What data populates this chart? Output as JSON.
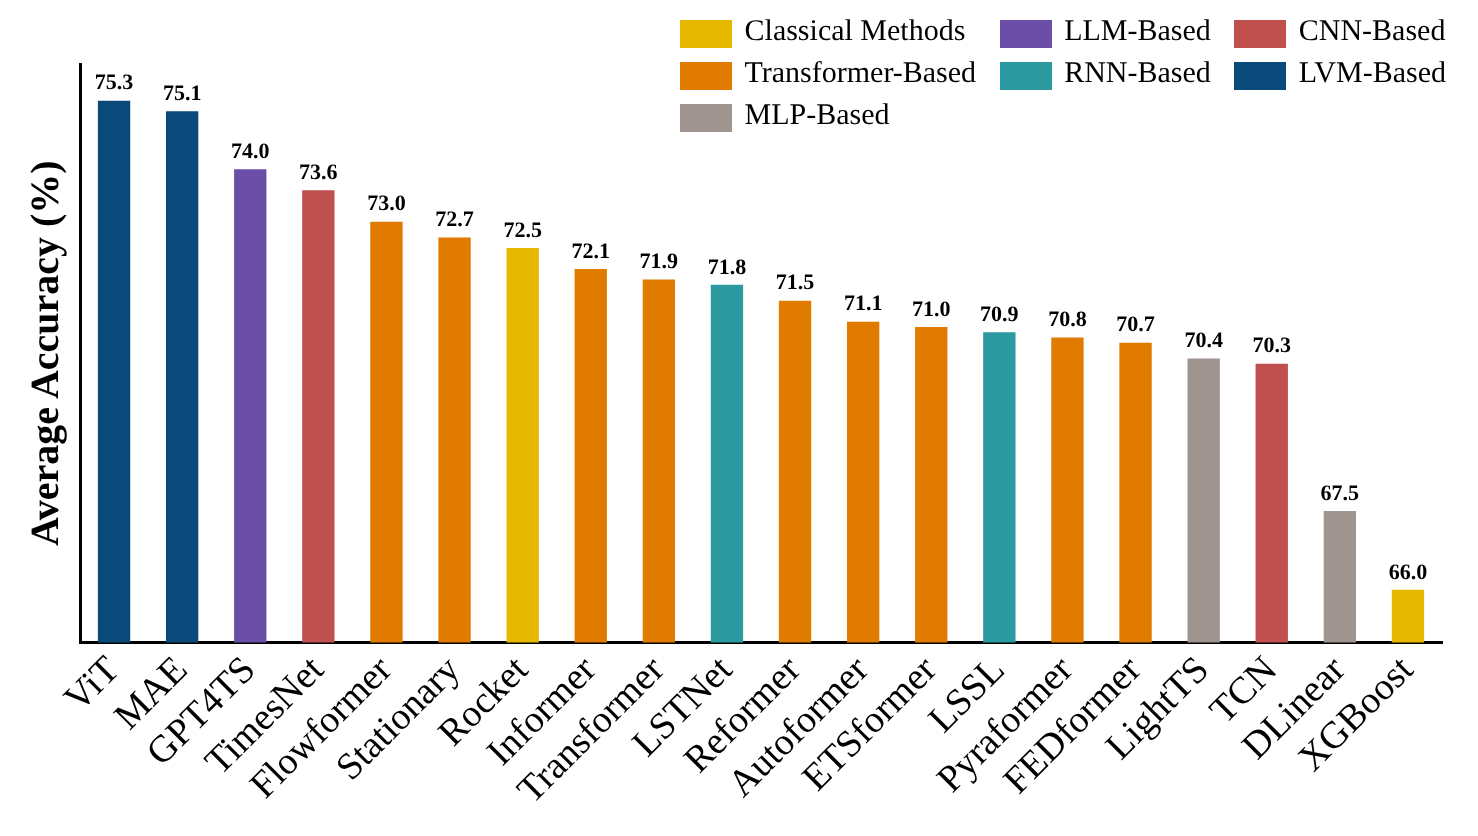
{
  "chart_data": {
    "type": "bar",
    "ylabel": "Average Accuracy (%)",
    "categories": [
      "ViT",
      "MAE",
      "GPT4TS",
      "TimesNet",
      "Flowformer",
      "Stationary",
      "Rocket",
      "Informer",
      "Transformer",
      "LSTNet",
      "Reformer",
      "Autoformer",
      "ETSformer",
      "LSSL",
      "Pyraformer",
      "FEDformer",
      "LightTS",
      "TCN",
      "DLinear",
      "XGBoost"
    ],
    "series": [
      {
        "name": "Classical Methods",
        "color": "#e6b800",
        "values": [
          null,
          null,
          null,
          null,
          null,
          null,
          72.5,
          null,
          null,
          null,
          null,
          null,
          null,
          null,
          null,
          null,
          null,
          null,
          null,
          66.0
        ],
        "value_labels": [
          null,
          null,
          null,
          null,
          null,
          null,
          "72.5",
          null,
          null,
          null,
          null,
          null,
          null,
          null,
          null,
          null,
          null,
          null,
          null,
          "66.0"
        ]
      },
      {
        "name": "LLM-Based",
        "color": "#6a4ea8",
        "values": [
          null,
          null,
          74.0,
          null,
          null,
          null,
          null,
          null,
          null,
          null,
          null,
          null,
          null,
          null,
          null,
          null,
          null,
          null,
          null,
          null
        ],
        "value_labels": [
          null,
          null,
          "74.0",
          null,
          null,
          null,
          null,
          null,
          null,
          null,
          null,
          null,
          null,
          null,
          null,
          null,
          null,
          null,
          null,
          null
        ]
      },
      {
        "name": "CNN-Based",
        "color": "#c0504d",
        "values": [
          null,
          null,
          null,
          73.6,
          null,
          null,
          null,
          null,
          null,
          null,
          null,
          null,
          null,
          null,
          null,
          null,
          null,
          70.3,
          null,
          null
        ],
        "value_labels": [
          null,
          null,
          null,
          "73.6",
          null,
          null,
          null,
          null,
          null,
          null,
          null,
          null,
          null,
          null,
          null,
          null,
          null,
          "70.3",
          null,
          null
        ]
      },
      {
        "name": "Transformer-Based",
        "color": "#e07b00",
        "values": [
          null,
          null,
          null,
          null,
          73.0,
          72.7,
          null,
          72.1,
          71.9,
          null,
          71.5,
          71.1,
          71.0,
          null,
          70.8,
          70.7,
          null,
          null,
          null,
          null
        ],
        "value_labels": [
          null,
          null,
          null,
          null,
          "73.0",
          "72.7",
          null,
          "72.1",
          "71.9",
          null,
          "71.5",
          "71.1",
          "71.0",
          null,
          "70.8",
          "70.7",
          null,
          null,
          null,
          null
        ]
      },
      {
        "name": "RNN-Based",
        "color": "#2a9aa0",
        "values": [
          null,
          null,
          null,
          null,
          null,
          null,
          null,
          null,
          null,
          71.8,
          null,
          null,
          null,
          70.9,
          null,
          null,
          null,
          null,
          null,
          null
        ],
        "value_labels": [
          null,
          null,
          null,
          null,
          null,
          null,
          null,
          null,
          null,
          "71.8",
          null,
          null,
          null,
          "70.9",
          null,
          null,
          null,
          null,
          null,
          null
        ]
      },
      {
        "name": "LVM-Based",
        "color": "#0a4a7a",
        "values": [
          75.3,
          75.1,
          null,
          null,
          null,
          null,
          null,
          null,
          null,
          null,
          null,
          null,
          null,
          null,
          null,
          null,
          null,
          null,
          null,
          null
        ],
        "value_labels": [
          "75.3",
          "75.1",
          null,
          null,
          null,
          null,
          null,
          null,
          null,
          null,
          null,
          null,
          null,
          null,
          null,
          null,
          null,
          null,
          null,
          null
        ]
      },
      {
        "name": "MLP-Based",
        "color": "#a09490",
        "values": [
          null,
          null,
          null,
          null,
          null,
          null,
          null,
          null,
          null,
          null,
          null,
          null,
          null,
          null,
          null,
          null,
          70.4,
          null,
          67.5,
          null
        ],
        "value_labels": [
          null,
          null,
          null,
          null,
          null,
          null,
          null,
          null,
          null,
          null,
          null,
          null,
          null,
          null,
          null,
          null,
          "70.4",
          null,
          "67.5",
          null
        ]
      }
    ],
    "ylim": [
      65,
      76
    ],
    "tick_labels": "x",
    "grid": false,
    "legend": "top right"
  }
}
